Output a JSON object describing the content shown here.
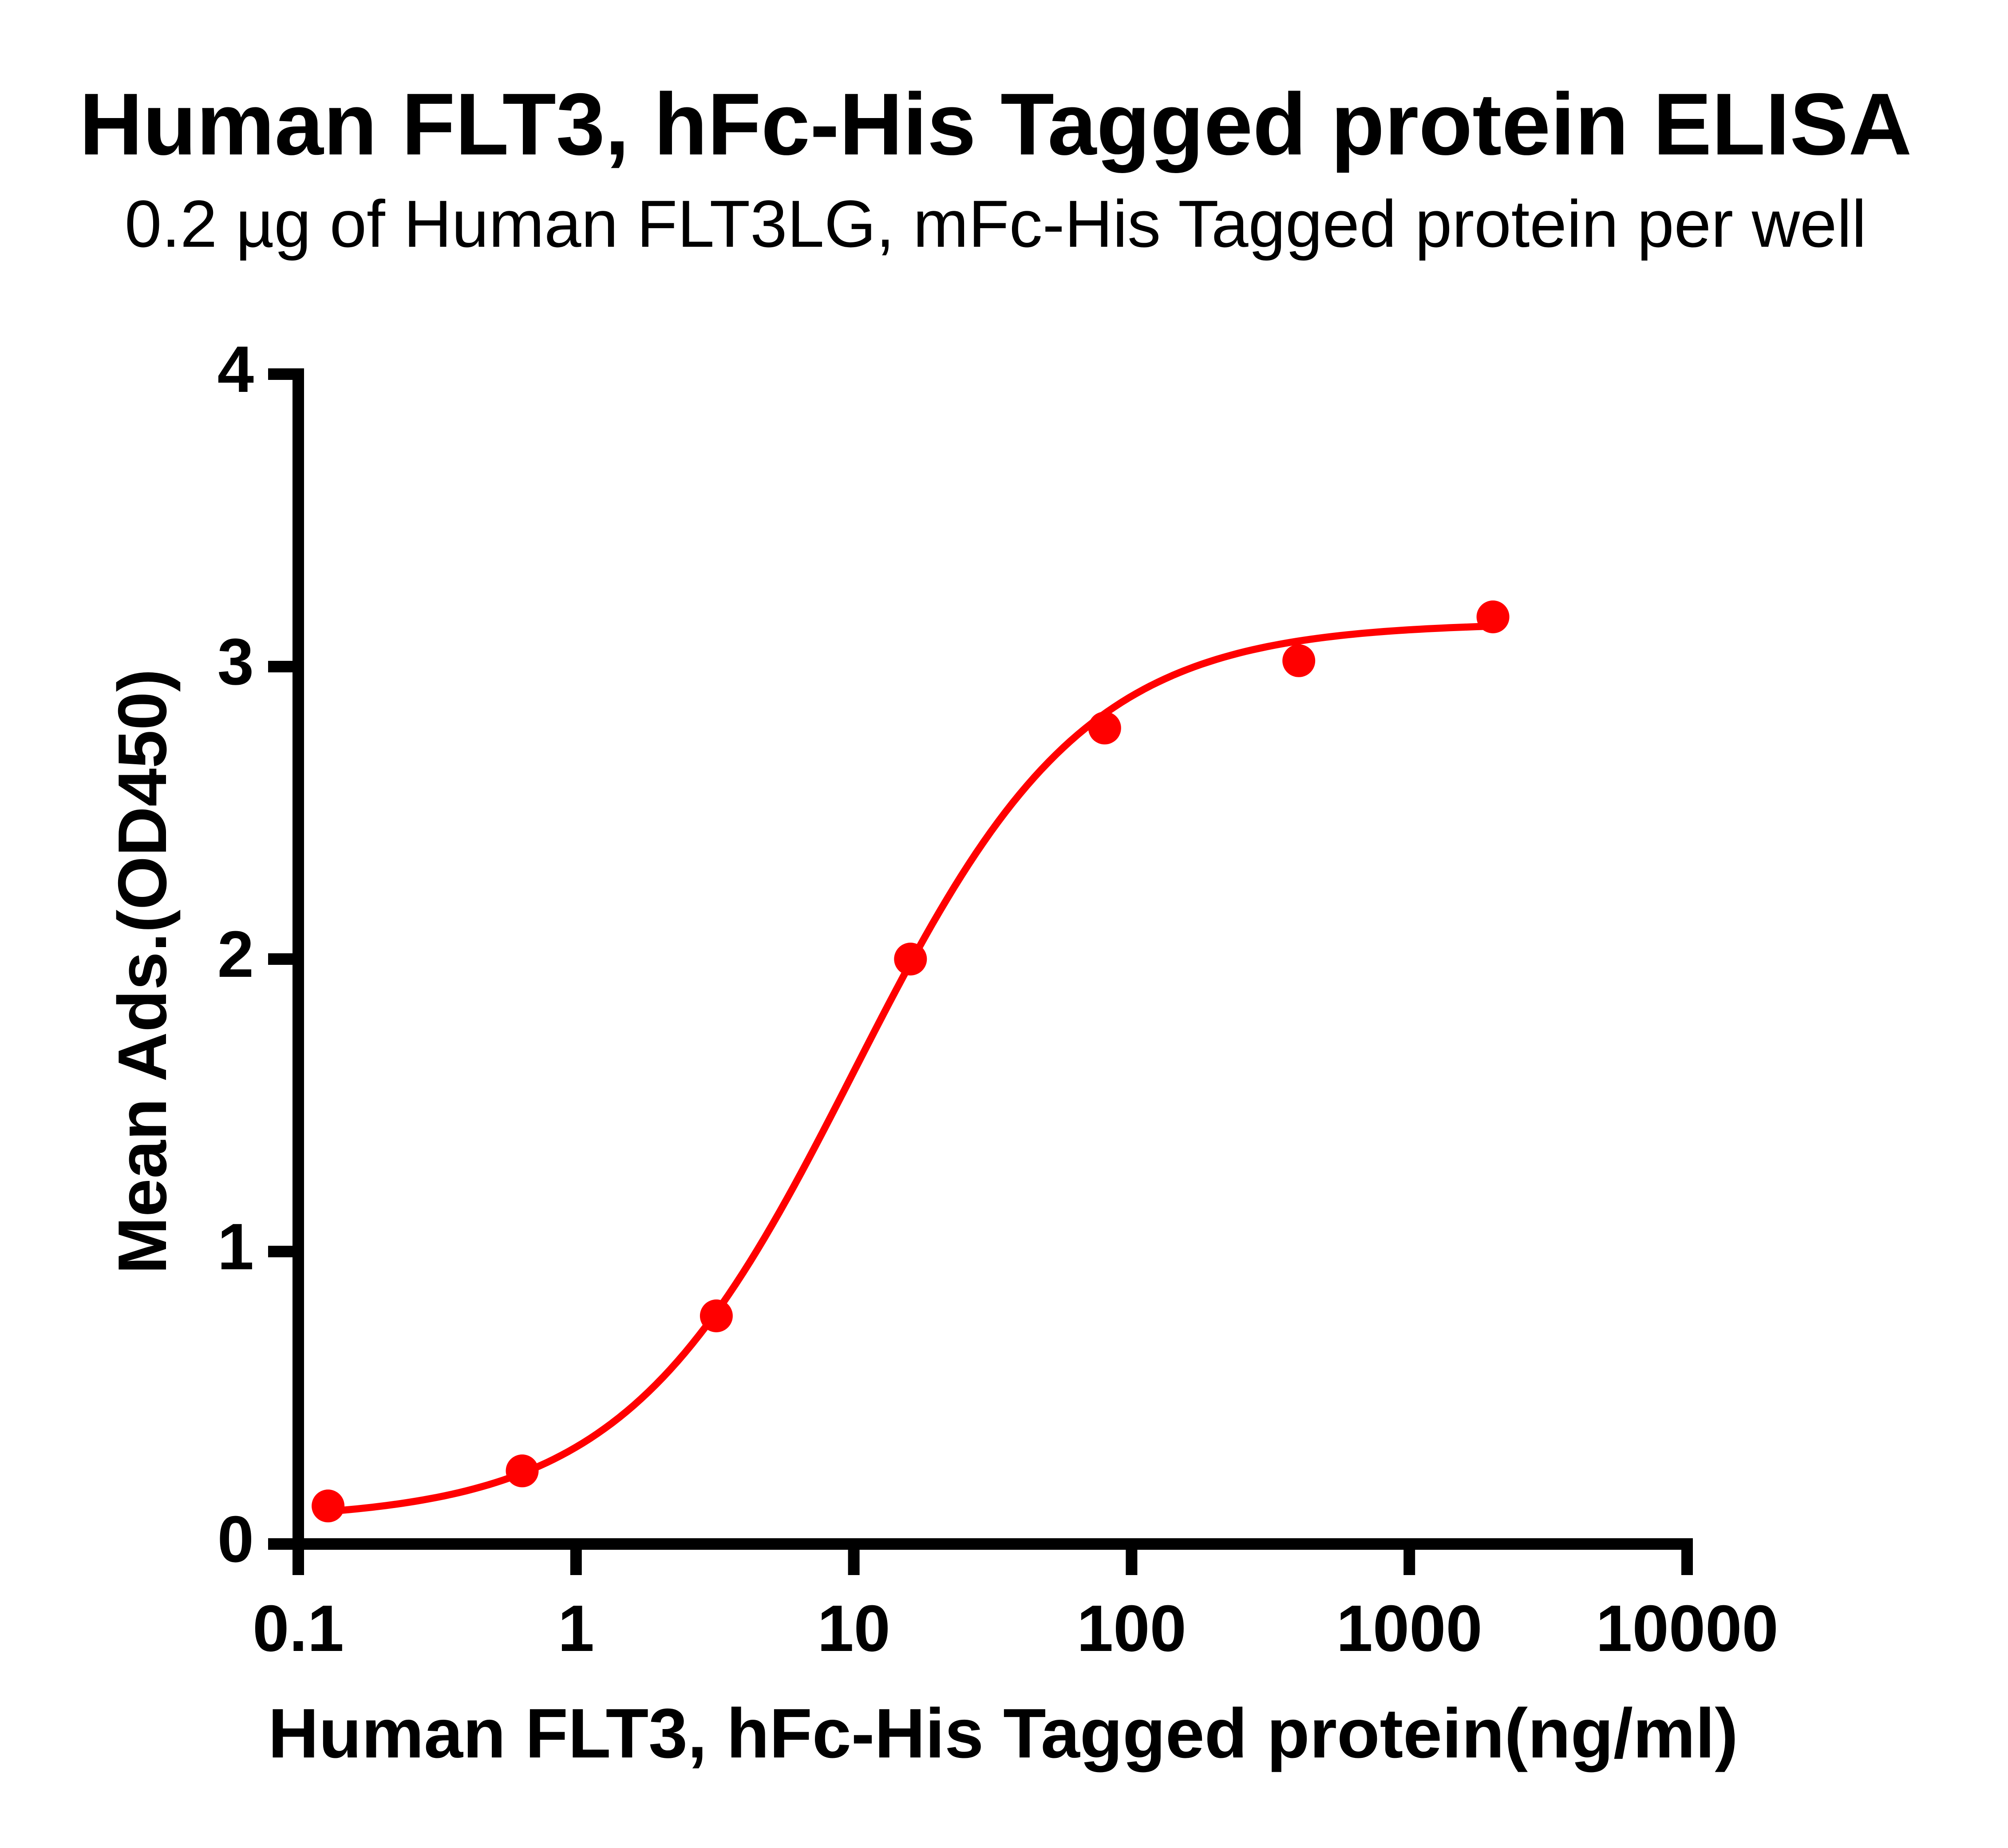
{
  "page": {
    "background": "#ffffff"
  },
  "chart_data": {
    "type": "scatter",
    "title": "Human FLT3, hFc-His Tagged protein ELISA",
    "subtitle": "0.2 µg of Human FLT3LG, mFc-His Tagged protein per well",
    "xlabel": "Human FLT3, hFc-His Tagged protein(ng/ml)",
    "ylabel": "Mean Ads.(OD450)",
    "x_scale": "log10",
    "xlim": [
      0.1,
      10000
    ],
    "ylim": [
      0,
      4
    ],
    "x_ticks": [
      0.1,
      1,
      10,
      100,
      1000,
      10000
    ],
    "x_tick_labels": [
      "0.1",
      "1",
      "10",
      "100",
      "1000",
      "10000"
    ],
    "y_ticks": [
      0,
      1,
      2,
      3,
      4
    ],
    "y_tick_labels": [
      "0",
      "1",
      "2",
      "3",
      "4"
    ],
    "grid": false,
    "legend": false,
    "axis_color": "#000000",
    "series": [
      {
        "name": "Human FLT3, hFc-His Tagged protein",
        "color": "#FF0000",
        "marker": "circle",
        "points": [
          {
            "x": 0.128,
            "y": 0.13
          },
          {
            "x": 0.64,
            "y": 0.25
          },
          {
            "x": 3.2,
            "y": 0.78
          },
          {
            "x": 16,
            "y": 2.0
          },
          {
            "x": 80,
            "y": 2.79
          },
          {
            "x": 400,
            "y": 3.02
          },
          {
            "x": 2000,
            "y": 3.17
          }
        ],
        "fit_curve": {
          "model": "4PL-sigmoid",
          "bottom": 0.08,
          "top": 3.15,
          "ec50": 10,
          "hill": 1.05,
          "x_start": 0.128,
          "x_end": 2000
        }
      }
    ]
  }
}
